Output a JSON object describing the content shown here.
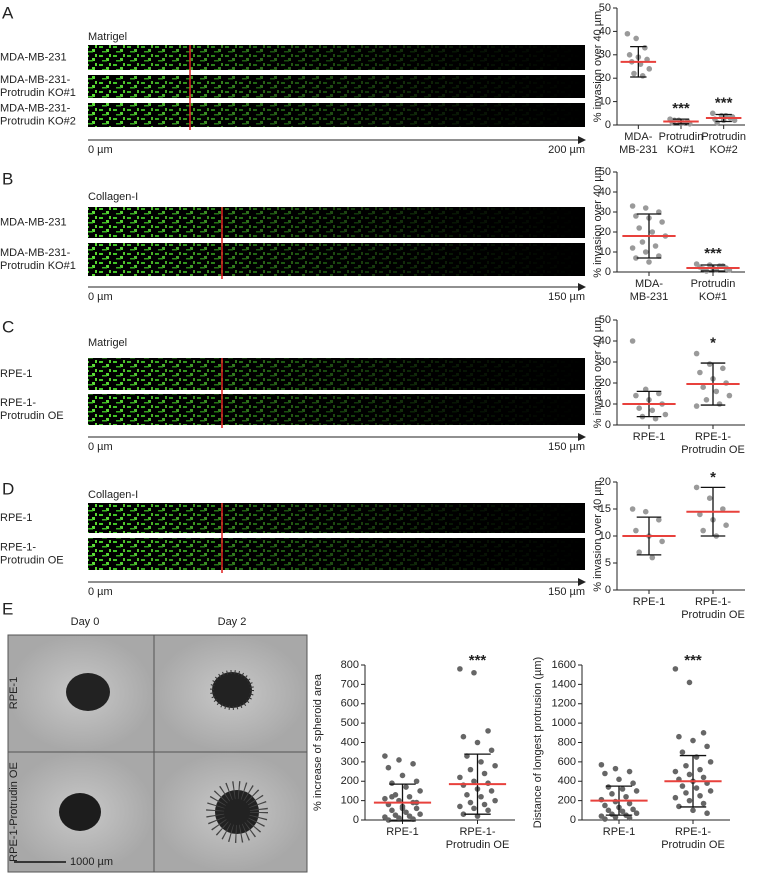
{
  "panel_labels": [
    "A",
    "B",
    "C",
    "D",
    "E"
  ],
  "image_panels": [
    {
      "medium": "Matrigel",
      "rows": [
        "MDA-MB-231",
        "MDA-MB-231-\nProtrudin KO#1",
        "MDA-MB-231-\nProtrudin KO#2"
      ],
      "axis": [
        "0 µm",
        "200 µm"
      ]
    },
    {
      "medium": "Collagen-I",
      "rows": [
        "MDA-MB-231",
        "MDA-MB-231-\nProtrudin KO#1"
      ],
      "axis": [
        "0 µm",
        "150 µm"
      ]
    },
    {
      "medium": "Matrigel",
      "rows": [
        "RPE-1",
        "RPE-1-\nProtrudin OE"
      ],
      "axis": [
        "0 µm",
        "150 µm"
      ]
    },
    {
      "medium": "Collagen-I",
      "rows": [
        "RPE-1",
        "RPE-1-\nProtrudin OE"
      ],
      "axis": [
        "0 µm",
        "150 µm"
      ]
    }
  ],
  "spheroid": {
    "columns": [
      "Day 0",
      "Day 2"
    ],
    "rows": [
      "RPE-1",
      "RPE-1-Protrudin OE"
    ],
    "scale_bar": "1000 µm"
  },
  "chart_data": [
    {
      "type": "dot",
      "y_label": "% invasion over 40 µm",
      "categories": [
        "MDA-\nMB-231",
        "Protrudin\nKO#1",
        "Protrudin\nKO#2"
      ],
      "values": [
        [
          39,
          37,
          33,
          30,
          29,
          28,
          27,
          26,
          24,
          22,
          21
        ],
        [
          2.5,
          2,
          1.5,
          1,
          1,
          0.5,
          2,
          1
        ],
        [
          5,
          4,
          3,
          2.5,
          2,
          3.5,
          1,
          4,
          2
        ]
      ],
      "means": [
        27,
        1.5,
        3
      ],
      "sd": [
        6.5,
        1,
        1.5
      ],
      "annotations": [
        null,
        "***",
        "***"
      ],
      "color": "#9a9a9a",
      "mean_color": "#e8413c",
      "ylim": [
        0,
        50
      ],
      "yticks": [
        0,
        10,
        20,
        30,
        40,
        50
      ]
    },
    {
      "type": "dot",
      "y_label": "% invasion over 40 µm",
      "categories": [
        "MDA-\nMB-231",
        "Protrudin\nKO#1"
      ],
      "values": [
        [
          33,
          32,
          30,
          28,
          27,
          25,
          22,
          20,
          18,
          15,
          13,
          12,
          10,
          8,
          7,
          5
        ],
        [
          4,
          3.5,
          3,
          2.5,
          2,
          2,
          1.5,
          1,
          1,
          0.5,
          3
        ]
      ],
      "means": [
        18,
        2
      ],
      "sd": [
        11,
        1.5
      ],
      "annotations": [
        null,
        "***"
      ],
      "color": "#9a9a9a",
      "mean_color": "#e8413c",
      "ylim": [
        0,
        50
      ],
      "yticks": [
        0,
        10,
        20,
        30,
        40,
        50
      ]
    },
    {
      "type": "dot",
      "y_label": "% invasion over 40 µm",
      "categories": [
        "RPE-1",
        "RPE-1-\nProtrudin OE"
      ],
      "values": [
        [
          40,
          17,
          15,
          14,
          12,
          10,
          8,
          7,
          5,
          4,
          3
        ],
        [
          34,
          29,
          27,
          25,
          22,
          20,
          18,
          16,
          14,
          12,
          10,
          9
        ]
      ],
      "means": [
        10,
        19.5
      ],
      "sd": [
        6,
        10
      ],
      "annotations": [
        null,
        "*"
      ],
      "color": "#9a9a9a",
      "mean_color": "#e8413c",
      "ylim": [
        0,
        50
      ],
      "yticks": [
        0,
        10,
        20,
        30,
        40,
        50
      ]
    },
    {
      "type": "dot",
      "y_label": "% invasion over 40 µm",
      "categories": [
        "RPE-1",
        "RPE-1-\nProtrudin OE"
      ],
      "values": [
        [
          15,
          14.5,
          13,
          11,
          10,
          9,
          7,
          6
        ],
        [
          19,
          17,
          15,
          14,
          13,
          12,
          11,
          10
        ]
      ],
      "means": [
        10,
        14.5
      ],
      "sd": [
        3.5,
        4.5
      ],
      "annotations": [
        null,
        "*"
      ],
      "color": "#9a9a9a",
      "mean_color": "#e8413c",
      "ylim": [
        0,
        20
      ],
      "yticks": [
        0,
        5,
        10,
        15,
        20
      ]
    },
    {
      "type": "dot",
      "y_label": "% increase of spheroid area",
      "categories": [
        "RPE-1",
        "RPE-1-\nProtrudin OE"
      ],
      "values": [
        [
          330,
          310,
          290,
          270,
          230,
          200,
          190,
          170,
          150,
          130,
          120,
          110,
          100,
          90,
          80,
          70,
          60,
          50,
          40,
          30,
          25,
          20,
          15,
          10,
          5,
          0,
          60,
          90,
          120
        ],
        [
          780,
          760,
          460,
          430,
          400,
          360,
          330,
          300,
          280,
          260,
          240,
          220,
          200,
          190,
          180,
          160,
          150,
          130,
          120,
          100,
          90,
          80,
          70,
          60,
          50,
          30,
          20
        ]
      ],
      "means": [
        90,
        185
      ],
      "sd": [
        95,
        155
      ],
      "annotations": [
        null,
        "***"
      ],
      "color": "#666666",
      "mean_color": "#e8413c",
      "ylim": [
        0,
        800
      ],
      "yticks": [
        0,
        100,
        200,
        300,
        400,
        500,
        600,
        700,
        800
      ]
    },
    {
      "type": "dot",
      "y_label": "Distance of longest protrusion (µm)",
      "categories": [
        "RPE-1",
        "RPE-1-\nProtrudin OE"
      ],
      "values": [
        [
          570,
          530,
          500,
          480,
          420,
          380,
          340,
          320,
          300,
          270,
          240,
          210,
          190,
          170,
          150,
          130,
          110,
          100,
          90,
          70,
          60,
          50,
          40,
          30,
          20,
          10
        ],
        [
          1560,
          1420,
          900,
          860,
          820,
          760,
          700,
          650,
          600,
          560,
          520,
          500,
          470,
          440,
          420,
          400,
          380,
          350,
          330,
          300,
          280,
          250,
          230,
          200,
          170,
          140,
          100,
          70
        ]
      ],
      "means": [
        200,
        400
      ],
      "sd": [
        150,
        265
      ],
      "annotations": [
        null,
        "***"
      ],
      "color": "#666666",
      "mean_color": "#e8413c",
      "ylim": [
        0,
        1600
      ],
      "yticks": [
        0,
        200,
        400,
        600,
        800,
        1000,
        1200,
        1400,
        1600
      ]
    }
  ]
}
